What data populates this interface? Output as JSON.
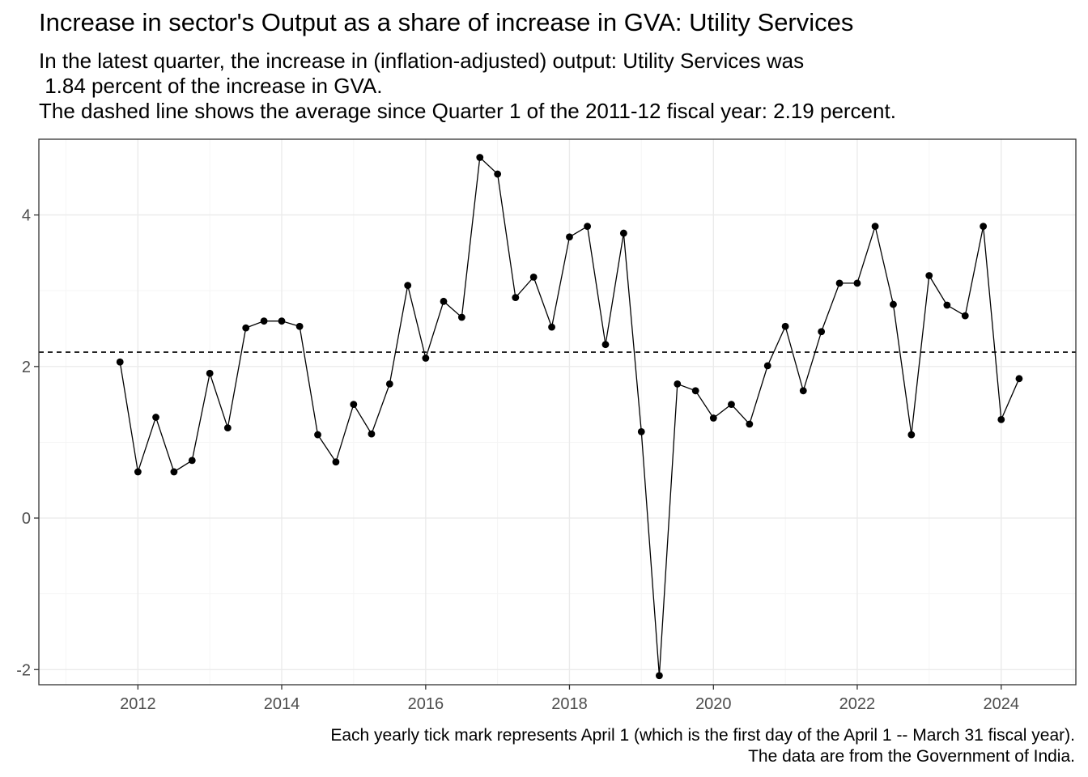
{
  "title": "Increase in sector's Output as a share of increase in GVA: Utility Services",
  "subtitle_lines": [
    "In the latest quarter, the increase in (inflation-adjusted) output: Utility Services was",
    " 1.84 percent of the increase in GVA.",
    "The dashed line shows the average since Quarter 1 of the 2011-12 fiscal year: 2.19 percent."
  ],
  "caption_lines": [
    "Each yearly tick mark represents April 1 (which is the first day of the April 1 -- March 31 fiscal year).",
    "The data are from the Government of India."
  ],
  "colors": {
    "line": "#000000",
    "point": "#000000",
    "grid_major": "#ebebeb",
    "grid_minor": "#f5f5f5",
    "panel_border": "#333333",
    "tick_text": "#4d4d4d"
  },
  "chart_data": {
    "type": "line",
    "x_type": "date",
    "xlim": [
      "2010-11-15",
      "2025-04-15"
    ],
    "ylim": [
      -2.2,
      5.0
    ],
    "x_ticks": [
      "2012",
      "2014",
      "2016",
      "2018",
      "2020",
      "2022",
      "2024"
    ],
    "y_ticks": [
      "-2",
      "0",
      "2",
      "4"
    ],
    "grid": true,
    "reference_line": {
      "y": 2.19,
      "style": "dashed"
    },
    "points": [
      {
        "x": "2012-01-01",
        "y": 2.06
      },
      {
        "x": "2012-04-01",
        "y": 0.61
      },
      {
        "x": "2012-07-01",
        "y": 1.33
      },
      {
        "x": "2012-10-01",
        "y": 0.61
      },
      {
        "x": "2013-01-01",
        "y": 0.76
      },
      {
        "x": "2013-04-01",
        "y": 1.91
      },
      {
        "x": "2013-07-01",
        "y": 1.19
      },
      {
        "x": "2013-10-01",
        "y": 2.51
      },
      {
        "x": "2014-01-01",
        "y": 2.6
      },
      {
        "x": "2014-04-01",
        "y": 2.6
      },
      {
        "x": "2014-07-01",
        "y": 2.53
      },
      {
        "x": "2014-10-01",
        "y": 1.1
      },
      {
        "x": "2015-01-01",
        "y": 0.74
      },
      {
        "x": "2015-04-01",
        "y": 1.5
      },
      {
        "x": "2015-07-01",
        "y": 1.11
      },
      {
        "x": "2015-10-01",
        "y": 1.77
      },
      {
        "x": "2016-01-01",
        "y": 3.07
      },
      {
        "x": "2016-04-01",
        "y": 2.11
      },
      {
        "x": "2016-07-01",
        "y": 2.86
      },
      {
        "x": "2016-10-01",
        "y": 2.65
      },
      {
        "x": "2017-01-01",
        "y": 4.76
      },
      {
        "x": "2017-04-01",
        "y": 4.54
      },
      {
        "x": "2017-07-01",
        "y": 2.91
      },
      {
        "x": "2017-10-01",
        "y": 3.18
      },
      {
        "x": "2018-01-01",
        "y": 2.52
      },
      {
        "x": "2018-04-01",
        "y": 3.71
      },
      {
        "x": "2018-07-01",
        "y": 3.85
      },
      {
        "x": "2018-10-01",
        "y": 2.29
      },
      {
        "x": "2019-01-01",
        "y": 3.76
      },
      {
        "x": "2019-04-01",
        "y": 1.14
      },
      {
        "x": "2019-07-01",
        "y": -2.08
      },
      {
        "x": "2019-10-01",
        "y": 1.77
      },
      {
        "x": "2020-01-01",
        "y": 1.68
      },
      {
        "x": "2020-04-01",
        "y": 1.32
      },
      {
        "x": "2020-07-01",
        "y": 1.5
      },
      {
        "x": "2020-10-01",
        "y": 1.24
      },
      {
        "x": "2021-01-01",
        "y": 2.01
      },
      {
        "x": "2021-04-01",
        "y": 2.53
      },
      {
        "x": "2021-07-01",
        "y": 1.68
      },
      {
        "x": "2021-10-01",
        "y": 2.46
      },
      {
        "x": "2022-01-01",
        "y": 3.1
      },
      {
        "x": "2022-04-01",
        "y": 3.1
      },
      {
        "x": "2022-07-01",
        "y": 3.85
      },
      {
        "x": "2022-10-01",
        "y": 2.82
      },
      {
        "x": "2023-01-01",
        "y": 1.1
      },
      {
        "x": "2023-04-01",
        "y": 3.2
      },
      {
        "x": "2023-07-01",
        "y": 2.81
      },
      {
        "x": "2023-10-01",
        "y": 2.67
      },
      {
        "x": "2024-01-01",
        "y": 3.85
      },
      {
        "x": "2024-04-01",
        "y": 1.3
      },
      {
        "x": "2024-07-01",
        "y": 1.84
      }
    ]
  }
}
